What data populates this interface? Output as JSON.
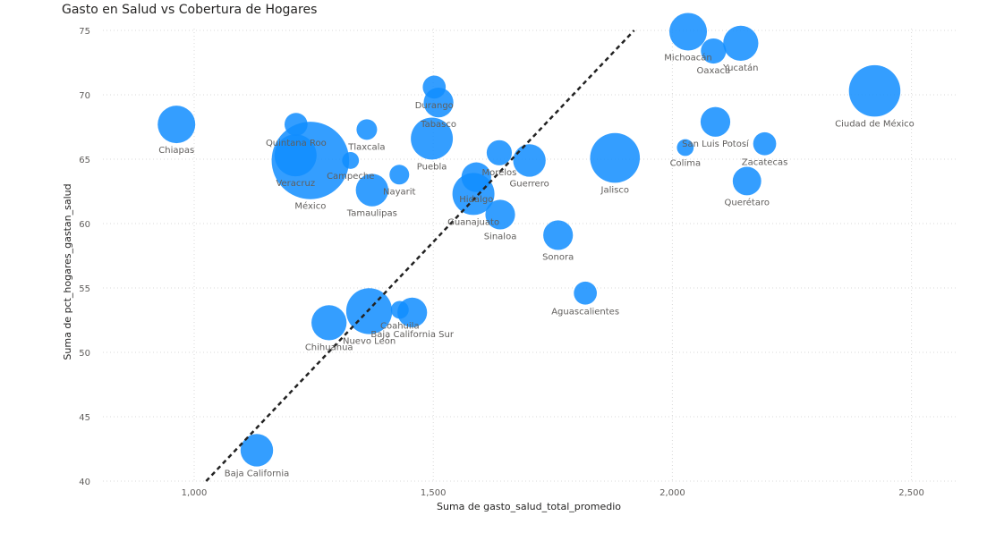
{
  "chart_data": {
    "type": "scatter",
    "title": "Gasto en Salud vs Cobertura de Hogares",
    "xlabel": "Suma de gasto_salud_total_promedio",
    "ylabel": "Suma de pct_hogares_gastan_salud",
    "xlim": [
      800,
      2600
    ],
    "ylim": [
      40,
      75
    ],
    "x_ticks": [
      1000,
      1500,
      2000,
      2500
    ],
    "x_tick_labels": [
      "1,000",
      "1,500",
      "2,000",
      "2,500"
    ],
    "y_ticks": [
      40,
      45,
      50,
      55,
      60,
      65,
      70,
      75
    ],
    "y_tick_labels": [
      "40",
      "45",
      "50",
      "55",
      "60",
      "65",
      "70",
      "75"
    ],
    "grid": true,
    "bubble_color": "#118DFF",
    "trend_line": {
      "style": "dotted",
      "color": "#222222",
      "from": [
        1025,
        40
      ],
      "to": [
        1920,
        75
      ]
    },
    "points": [
      {
        "name": "Chiapas",
        "x": 963,
        "y": 67.7,
        "size": 400
      },
      {
        "name": "Quintana Roo",
        "x": 1213,
        "y": 67.7,
        "size": 150
      },
      {
        "name": "Veracruz",
        "x": 1212,
        "y": 65.3,
        "size": 500
      },
      {
        "name": "México",
        "x": 1243,
        "y": 64.9,
        "size": 1700
      },
      {
        "name": "Tlaxcala",
        "x": 1361,
        "y": 67.3,
        "size": 120
      },
      {
        "name": "Campeche",
        "x": 1327,
        "y": 64.9,
        "size": 80
      },
      {
        "name": "Tamaulipas",
        "x": 1372,
        "y": 62.6,
        "size": 300
      },
      {
        "name": "Nayarit",
        "x": 1429,
        "y": 63.8,
        "size": 110
      },
      {
        "name": "Durango",
        "x": 1502,
        "y": 70.6,
        "size": 150
      },
      {
        "name": "Tabasco",
        "x": 1511,
        "y": 69.4,
        "size": 250
      },
      {
        "name": "Puebla",
        "x": 1497,
        "y": 66.6,
        "size": 500
      },
      {
        "name": "Morelos",
        "x": 1638,
        "y": 65.5,
        "size": 180
      },
      {
        "name": "Hidalgo",
        "x": 1590,
        "y": 63.6,
        "size": 250
      },
      {
        "name": "Guanajuato",
        "x": 1584,
        "y": 62.3,
        "size": 500
      },
      {
        "name": "Sinaloa",
        "x": 1640,
        "y": 60.7,
        "size": 250
      },
      {
        "name": "Guerrero",
        "x": 1701,
        "y": 64.9,
        "size": 300
      },
      {
        "name": "Sonora",
        "x": 1761,
        "y": 59.1,
        "size": 250
      },
      {
        "name": "Jalisco",
        "x": 1880,
        "y": 65.1,
        "size": 700
      },
      {
        "name": "Aguascalientes",
        "x": 1818,
        "y": 54.6,
        "size": 150
      },
      {
        "name": "Michoacán",
        "x": 2033,
        "y": 74.9,
        "size": 400
      },
      {
        "name": "Yucatán",
        "x": 2143,
        "y": 74.0,
        "size": 350
      },
      {
        "name": "Oaxaca",
        "x": 2086,
        "y": 73.4,
        "size": 180
      },
      {
        "name": "Ciudad de México",
        "x": 2423,
        "y": 70.3,
        "size": 750
      },
      {
        "name": "San Luis Potosí",
        "x": 2090,
        "y": 67.9,
        "size": 250
      },
      {
        "name": "Colima",
        "x": 2027,
        "y": 65.9,
        "size": 80
      },
      {
        "name": "Zacatecas",
        "x": 2193,
        "y": 66.2,
        "size": 150
      },
      {
        "name": "Querétaro",
        "x": 2156,
        "y": 63.3,
        "size": 230
      },
      {
        "name": "Chihuahua",
        "x": 1282,
        "y": 52.3,
        "size": 350
      },
      {
        "name": "Nuevo León",
        "x": 1366,
        "y": 53.2,
        "size": 600
      },
      {
        "name": "Coahuila",
        "x": 1430,
        "y": 53.3,
        "size": 90
      },
      {
        "name": "Baja California Sur",
        "x": 1456,
        "y": 53.1,
        "size": 250
      },
      {
        "name": "Baja California",
        "x": 1131,
        "y": 42.4,
        "size": 300
      }
    ]
  }
}
